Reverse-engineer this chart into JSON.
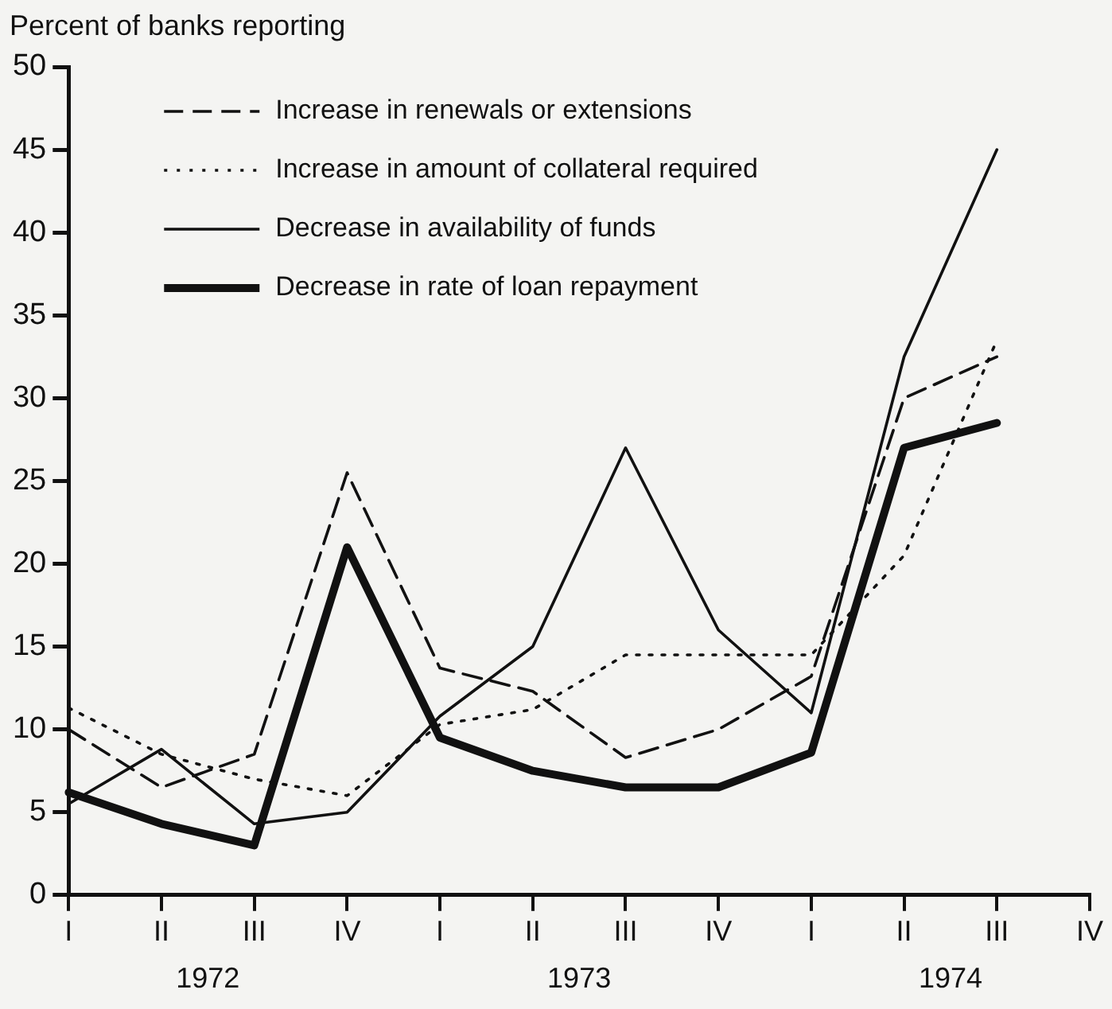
{
  "chart_data": {
    "type": "line",
    "ylabel": "Percent of banks reporting",
    "categories": [
      "I",
      "II",
      "III",
      "IV",
      "I",
      "II",
      "III",
      "IV",
      "I",
      "II",
      "III",
      "IV"
    ],
    "annotations": [
      "1972",
      "1973",
      "1974"
    ],
    "ylim": [
      0,
      50
    ],
    "yticks": [
      0,
      5,
      10,
      15,
      20,
      25,
      30,
      35,
      40,
      45,
      50
    ],
    "grid": false,
    "legend": "top left",
    "marker": "none",
    "series": [
      {
        "name": "Increase in renewals or extensions",
        "color": "#111111",
        "line_style": "dashed",
        "values": [
          10,
          6.5,
          8.5,
          25.5,
          13.7,
          12.3,
          8.3,
          10,
          13.2,
          30,
          32.5,
          null
        ]
      },
      {
        "name": "Increase in amount of collateral required",
        "color": "#111111",
        "line_style": "dotted",
        "values": [
          11.3,
          8.5,
          7,
          6,
          10.3,
          11.2,
          14.5,
          14.5,
          14.5,
          20.5,
          33.5,
          null
        ]
      },
      {
        "name": "Decrease in availability of funds",
        "color": "#111111",
        "line_style": "solid",
        "values": [
          5.5,
          8.8,
          4.3,
          5,
          10.8,
          15,
          27,
          16,
          11,
          32.5,
          45,
          null
        ]
      },
      {
        "name": "Decrease in rate of loan repayment",
        "color": "#111111",
        "line_style": "solid",
        "values": [
          6.2,
          4.3,
          3,
          21,
          9.5,
          7.5,
          6.5,
          6.5,
          8.6,
          27,
          28.5,
          null
        ]
      }
    ]
  }
}
